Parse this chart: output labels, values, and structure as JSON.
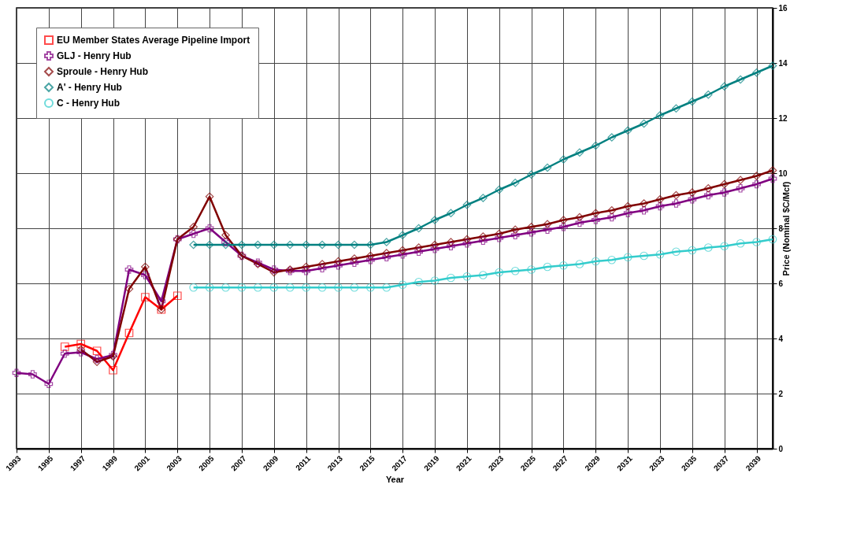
{
  "chart_data": {
    "type": "line",
    "xlabel": "Year",
    "ylabel": "Price (Nominal $C/Mcf)",
    "xlim": [
      1993,
      2040
    ],
    "xticks": [
      1993,
      1995,
      1997,
      1999,
      2001,
      2003,
      2005,
      2007,
      2009,
      2011,
      2013,
      2015,
      2017,
      2019,
      2021,
      2023,
      2025,
      2027,
      2029,
      2031,
      2033,
      2035,
      2037,
      2039
    ],
    "ylim": [
      0,
      16
    ],
    "yticks": [
      0,
      2,
      4,
      6,
      8,
      10,
      12,
      14,
      16
    ],
    "grid": true,
    "legend": "top left",
    "series": [
      {
        "name": "EU Member States Average Pipeline Import",
        "color": "#ff0000",
        "marker": "square",
        "x": [
          1996,
          1997,
          1998,
          1999,
          2000,
          2001,
          2002,
          2003
        ],
        "values": [
          3.7,
          3.8,
          3.55,
          2.85,
          4.2,
          5.5,
          5.05,
          5.55
        ]
      },
      {
        "name": "GLJ - Henry Hub",
        "color": "#800080",
        "marker": "cross",
        "x": [
          1993,
          1994,
          1995,
          1996,
          1997,
          1998,
          1999,
          2000,
          2001,
          2002,
          2003,
          2004,
          2005,
          2006,
          2007,
          2008,
          2009,
          2010,
          2011,
          2012,
          2013,
          2014,
          2015,
          2016,
          2017,
          2018,
          2019,
          2020,
          2021,
          2022,
          2023,
          2024,
          2025,
          2026,
          2027,
          2028,
          2029,
          2030,
          2031,
          2032,
          2033,
          2034,
          2035,
          2036,
          2037,
          2038,
          2039,
          2040
        ],
        "values": [
          2.75,
          2.7,
          2.35,
          3.45,
          3.5,
          3.25,
          3.4,
          6.5,
          6.3,
          5.35,
          7.6,
          7.8,
          8.0,
          7.5,
          7.0,
          6.75,
          6.5,
          6.45,
          6.45,
          6.55,
          6.65,
          6.75,
          6.85,
          6.95,
          7.05,
          7.15,
          7.25,
          7.35,
          7.45,
          7.55,
          7.65,
          7.75,
          7.85,
          7.95,
          8.05,
          8.2,
          8.3,
          8.4,
          8.55,
          8.65,
          8.8,
          8.9,
          9.05,
          9.2,
          9.3,
          9.45,
          9.6,
          9.8
        ]
      },
      {
        "name": "Sproule - Henry Hub",
        "color": "#800000",
        "marker": "diamond",
        "x": [
          1997,
          1998,
          1999,
          2000,
          2001,
          2002,
          2003,
          2004,
          2005,
          2006,
          2007,
          2008,
          2009,
          2010,
          2011,
          2012,
          2013,
          2014,
          2015,
          2016,
          2017,
          2018,
          2019,
          2020,
          2021,
          2022,
          2023,
          2024,
          2025,
          2026,
          2027,
          2028,
          2029,
          2030,
          2031,
          2032,
          2033,
          2034,
          2035,
          2036,
          2037,
          2038,
          2039,
          2040
        ],
        "values": [
          3.6,
          3.15,
          3.35,
          5.8,
          6.6,
          5.05,
          7.6,
          8.05,
          9.15,
          7.75,
          7.0,
          6.7,
          6.4,
          6.5,
          6.6,
          6.7,
          6.8,
          6.9,
          7.0,
          7.1,
          7.2,
          7.3,
          7.4,
          7.5,
          7.6,
          7.7,
          7.8,
          7.95,
          8.05,
          8.15,
          8.3,
          8.4,
          8.55,
          8.65,
          8.8,
          8.9,
          9.05,
          9.2,
          9.3,
          9.45,
          9.6,
          9.75,
          9.9,
          10.1
        ]
      },
      {
        "name": "A' - Henry Hub",
        "color": "#008080",
        "marker": "diamond",
        "x": [
          2004,
          2005,
          2006,
          2007,
          2008,
          2009,
          2010,
          2011,
          2012,
          2013,
          2014,
          2015,
          2016,
          2017,
          2018,
          2019,
          2020,
          2021,
          2022,
          2023,
          2024,
          2025,
          2026,
          2027,
          2028,
          2029,
          2030,
          2031,
          2032,
          2033,
          2034,
          2035,
          2036,
          2037,
          2038,
          2039,
          2040
        ],
        "values": [
          7.4,
          7.4,
          7.4,
          7.4,
          7.4,
          7.4,
          7.4,
          7.4,
          7.4,
          7.4,
          7.4,
          7.4,
          7.5,
          7.75,
          8.0,
          8.3,
          8.55,
          8.85,
          9.1,
          9.4,
          9.65,
          9.95,
          10.2,
          10.5,
          10.75,
          11.0,
          11.3,
          11.55,
          11.8,
          12.1,
          12.35,
          12.6,
          12.85,
          13.15,
          13.4,
          13.65,
          13.9
        ]
      },
      {
        "name": "C - Henry Hub",
        "color": "#33cccc",
        "marker": "circle",
        "x": [
          2004,
          2005,
          2006,
          2007,
          2008,
          2009,
          2010,
          2011,
          2012,
          2013,
          2014,
          2015,
          2016,
          2017,
          2018,
          2019,
          2020,
          2021,
          2022,
          2023,
          2024,
          2025,
          2026,
          2027,
          2028,
          2029,
          2030,
          2031,
          2032,
          2033,
          2034,
          2035,
          2036,
          2037,
          2038,
          2039,
          2040
        ],
        "values": [
          5.85,
          5.85,
          5.85,
          5.85,
          5.85,
          5.85,
          5.85,
          5.85,
          5.85,
          5.85,
          5.85,
          5.85,
          5.85,
          5.95,
          6.05,
          6.1,
          6.2,
          6.25,
          6.3,
          6.4,
          6.45,
          6.5,
          6.6,
          6.65,
          6.7,
          6.8,
          6.85,
          6.95,
          7.0,
          7.05,
          7.15,
          7.2,
          7.3,
          7.35,
          7.45,
          7.5,
          7.6
        ]
      }
    ]
  }
}
